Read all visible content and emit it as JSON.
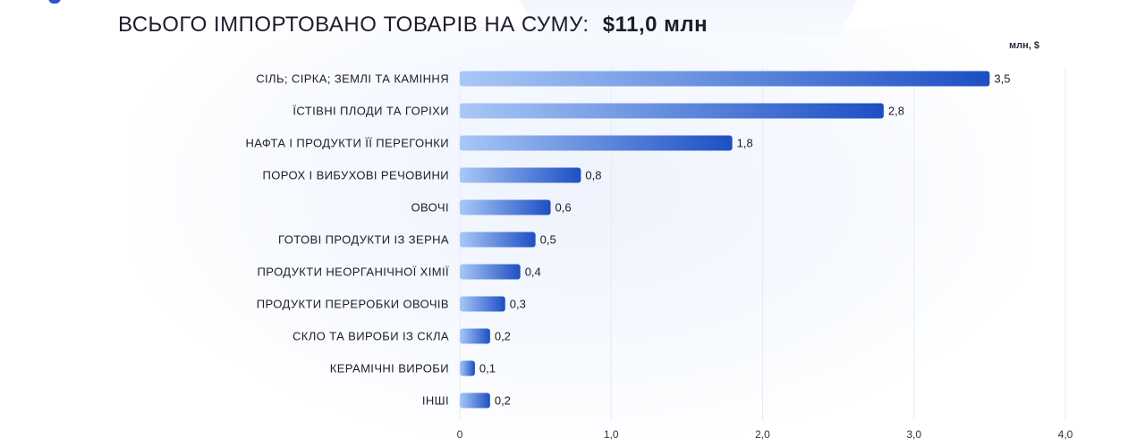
{
  "header": {
    "title": "ВСЬОГО ІМПОРТОВАНО ТОВАРІВ НА СУМУ:",
    "total": "$11,0 млн"
  },
  "chart_data": {
    "type": "bar",
    "orientation": "horizontal",
    "unit": "млн, $",
    "categories": [
      "СІЛЬ; СІРКА; ЗЕМЛІ ТА КАМІННЯ",
      "ЇСТІВНІ ПЛОДИ ТА ГОРІХИ",
      "НАФТА І ПРОДУКТИ ЇЇ ПЕРЕГОНКИ",
      "ПОРОХ І ВИБУХОВІ РЕЧОВИНИ",
      "ОВОЧІ",
      "ГОТОВІ ПРОДУКТИ ІЗ ЗЕРНА",
      "ПРОДУКТИ НЕОРГАНІЧНОЇ ХІМІЇ",
      "ПРОДУКТИ ПЕРЕРОБКИ ОВОЧІВ",
      "СКЛО ТА ВИРОБИ ІЗ СКЛА",
      "КЕРАМІЧНІ ВИРОБИ",
      "ІНШІ"
    ],
    "values": [
      3.5,
      2.8,
      1.8,
      0.8,
      0.6,
      0.5,
      0.4,
      0.3,
      0.2,
      0.1,
      0.2
    ],
    "value_labels": [
      "3,5",
      "2,8",
      "1,8",
      "0,8",
      "0,6",
      "0,5",
      "0,4",
      "0,3",
      "0,2",
      "0,1",
      "0,2"
    ],
    "x_ticks": [
      0,
      1,
      2,
      3,
      4
    ],
    "x_tick_labels": [
      "0",
      "1,0",
      "2,0",
      "3,0",
      "4,0"
    ],
    "xlim": [
      0,
      4
    ],
    "grid": true,
    "colors": {
      "bar_light": "#a9c8f7",
      "bar_dark": "#1d4fc4",
      "grid": "#e8ebf2"
    }
  }
}
